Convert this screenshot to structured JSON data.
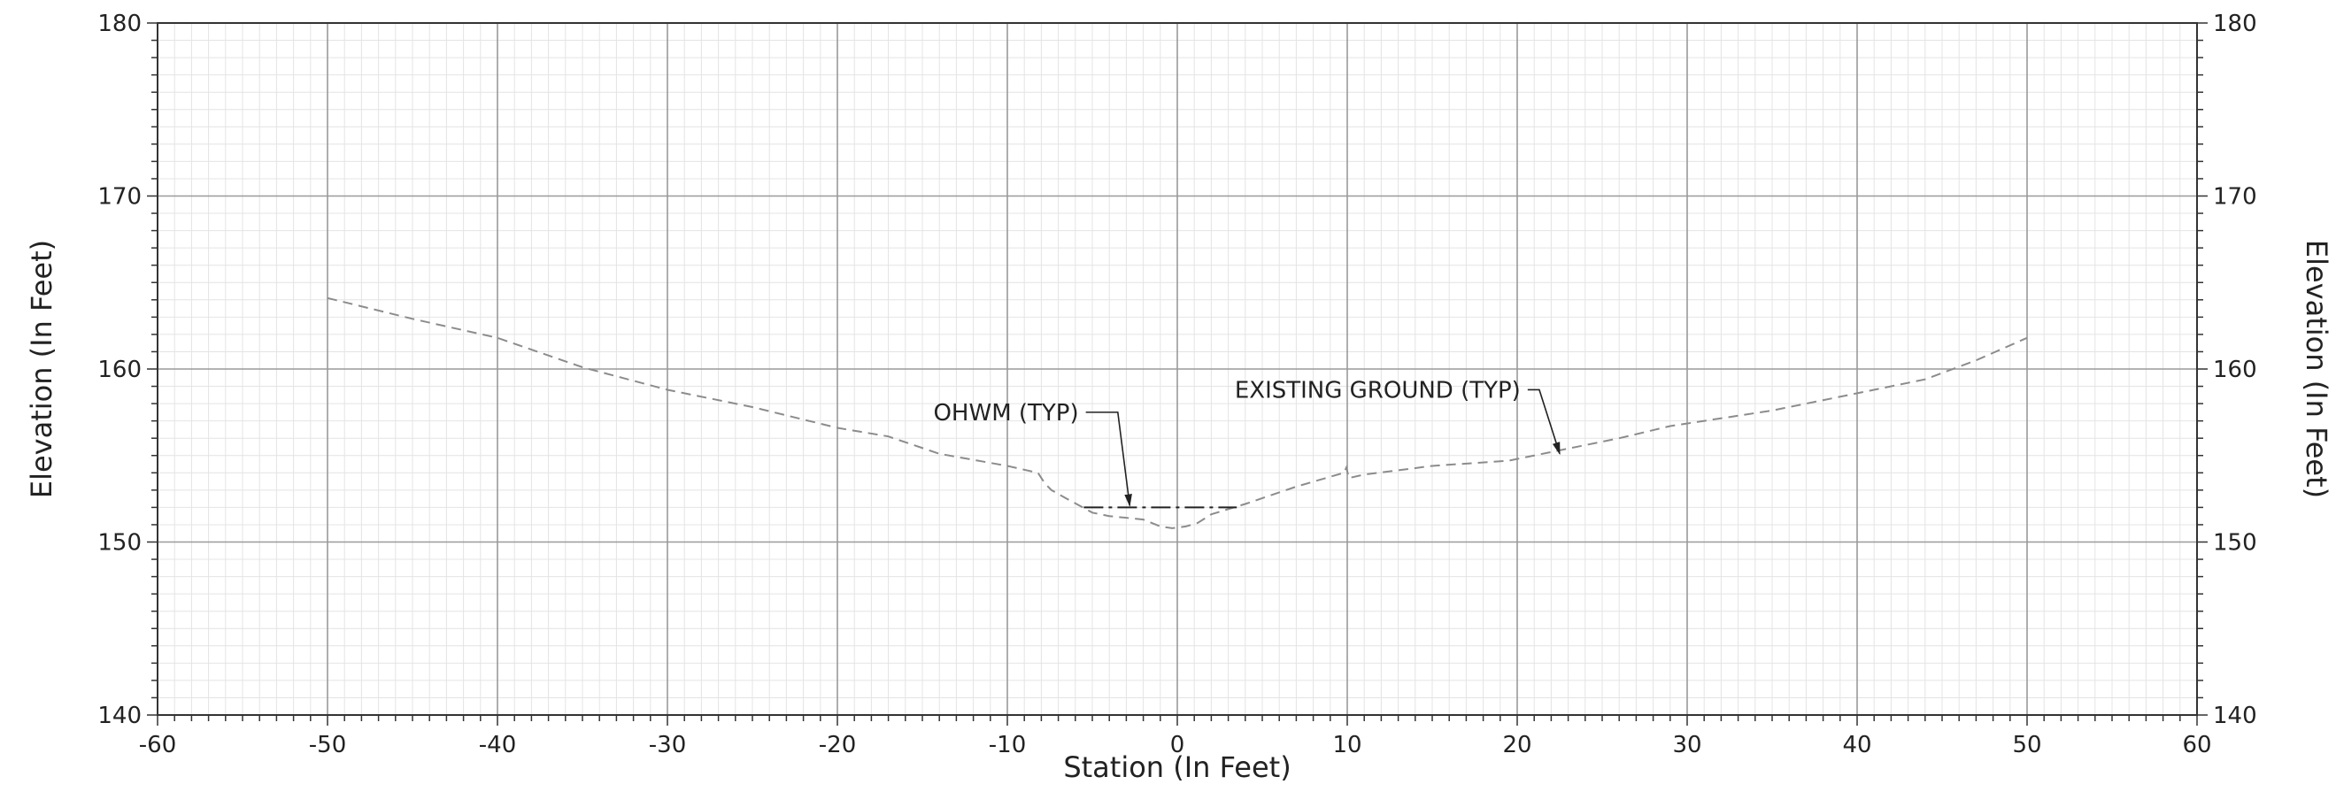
{
  "chart_data": {
    "type": "line",
    "title": "",
    "xlabel": "Station (In Feet)",
    "ylabel": "Elevation (In Feet)",
    "ylabel_right": "Elevation (In Feet)",
    "xlim": [
      -60,
      60
    ],
    "ylim": [
      140,
      180
    ],
    "x_major_step": 10,
    "y_major_step": 10,
    "x_minor_step": 1,
    "y_minor_step": 1,
    "grid": true,
    "x_tick_labels": [
      "-60",
      "-50",
      "-40",
      "-30",
      "-20",
      "-10",
      "0",
      "10",
      "20",
      "30",
      "40",
      "50",
      "60"
    ],
    "y_tick_labels": [
      "140",
      "150",
      "160",
      "170",
      "180"
    ],
    "series": [
      {
        "style": "dashed",
        "color": "#8c8c8c",
        "points": [
          [
            -50,
            164.1
          ],
          [
            -45,
            162.9
          ],
          [
            -40,
            161.8
          ],
          [
            -35,
            160.1
          ],
          [
            -30,
            158.8
          ],
          [
            -25,
            157.8
          ],
          [
            -20,
            156.6
          ],
          [
            -17,
            156.1
          ],
          [
            -14,
            155.1
          ],
          [
            -10,
            154.4
          ],
          [
            -8.2,
            154.0
          ],
          [
            -7.8,
            153.4
          ],
          [
            -7.4,
            153.0
          ],
          [
            -6.5,
            152.5
          ],
          [
            -5,
            151.7
          ],
          [
            -4,
            151.5
          ],
          [
            -2,
            151.3
          ],
          [
            -1,
            150.9
          ],
          [
            -0.3,
            150.8
          ],
          [
            0.5,
            150.9
          ],
          [
            1.2,
            151.1
          ],
          [
            2,
            151.6
          ],
          [
            4,
            152.2
          ],
          [
            7,
            153.2
          ],
          [
            9.8,
            154.0
          ],
          [
            9.95,
            154.3
          ],
          [
            10.1,
            153.7
          ],
          [
            11,
            153.9
          ],
          [
            15,
            154.4
          ],
          [
            19.5,
            154.7
          ],
          [
            23,
            155.4
          ],
          [
            26,
            156.0
          ],
          [
            29,
            156.7
          ],
          [
            35,
            157.6
          ],
          [
            40,
            158.6
          ],
          [
            44,
            159.4
          ],
          [
            47,
            160.5
          ],
          [
            50,
            161.8
          ]
        ]
      },
      {
        "style": "dash-dot",
        "color": "#222222",
        "points": [
          [
            -5.5,
            152.0
          ],
          [
            3.5,
            152.0
          ]
        ]
      }
    ],
    "annotations": [
      {
        "text": "OHWM (TYP)",
        "label_x": -5.8,
        "label_y": 157.5,
        "elbow_x": -3.5,
        "elbow_y": 157.5,
        "target_x": -2.8,
        "target_y": 152.1
      },
      {
        "text": "EXISTING GROUND (TYP)",
        "label_x": 20.2,
        "label_y": 158.8,
        "elbow_x": 21.3,
        "elbow_y": 158.8,
        "target_x": 22.5,
        "target_y": 155.1
      }
    ]
  }
}
